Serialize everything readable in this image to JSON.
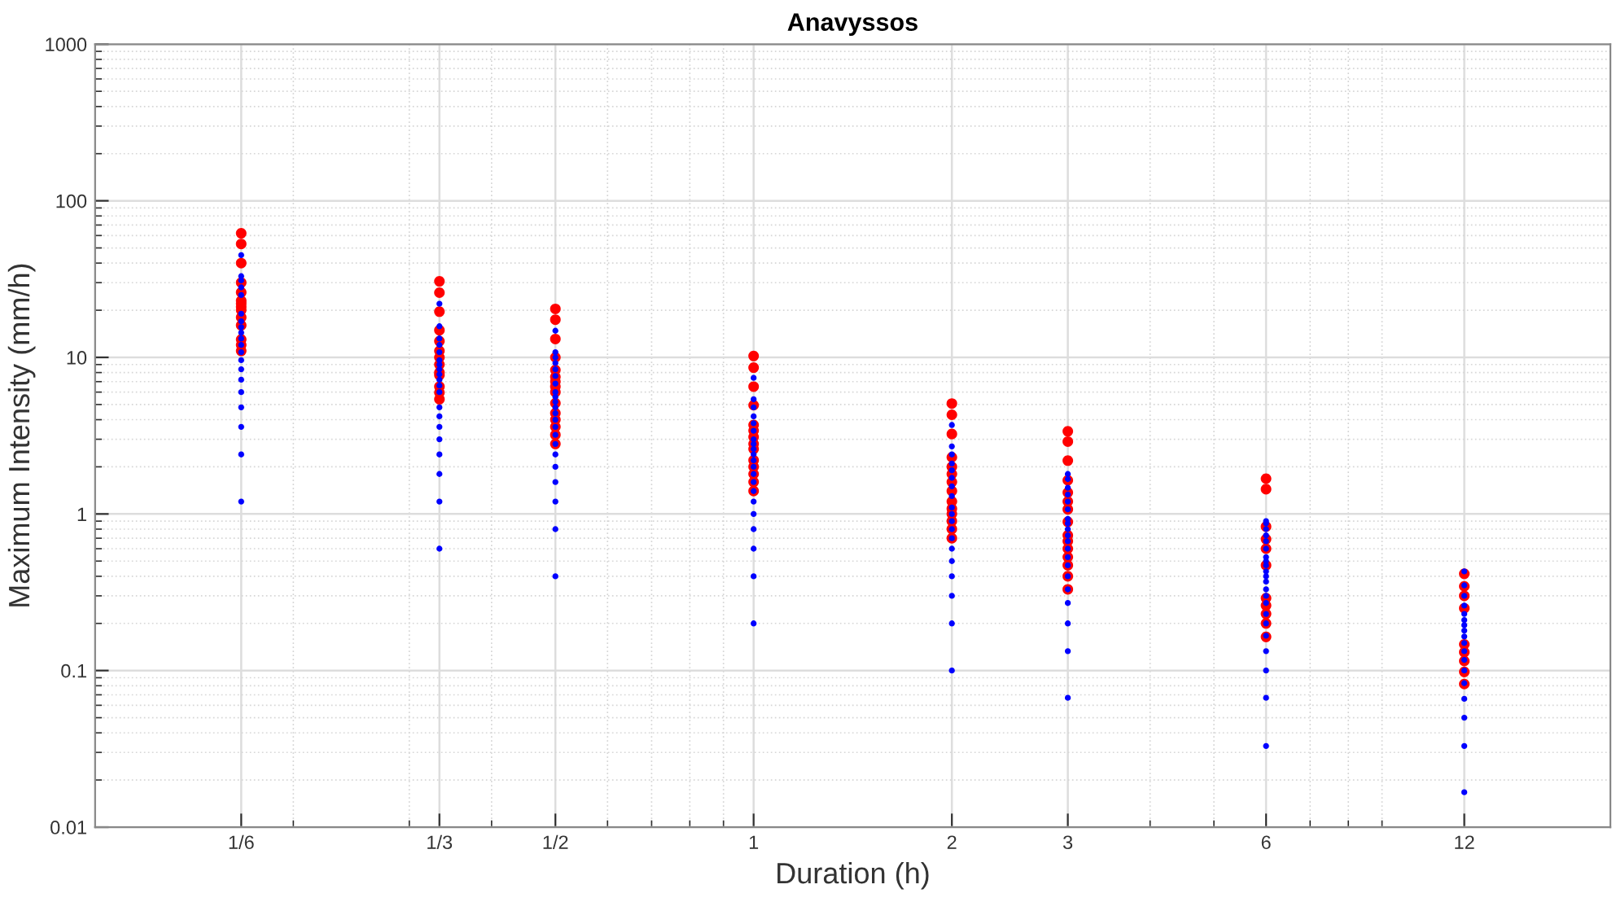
{
  "chart_data": {
    "type": "scatter",
    "title": "Anavyssos",
    "xlabel": "Duration (h)",
    "ylabel": "Maximum Intensity (mm/h)",
    "log": "xy",
    "grid": true,
    "marker": "circle",
    "xlim": [
      0.1,
      20
    ],
    "xticks": [
      {
        "value": 0.16667,
        "label": "1/6"
      },
      {
        "value": 0.33333,
        "label": "1/3"
      },
      {
        "value": 0.5,
        "label": "1/2"
      },
      1,
      2,
      3,
      6,
      12
    ],
    "ylim": [
      0.01,
      1000
    ],
    "yticks": [
      0.01,
      0.1,
      1,
      10,
      100,
      1000
    ],
    "series": [
      {
        "color": "#ff0000",
        "x": [
          0.16667,
          0.16667,
          0.16667,
          0.16667,
          0.16667,
          0.16667,
          0.16667,
          0.16667,
          0.16667,
          0.16667,
          0.16667,
          0.16667,
          0.16667,
          0.16667,
          0.33333,
          0.33333,
          0.33333,
          0.33333,
          0.33333,
          0.33333,
          0.33333,
          0.33333,
          0.33333,
          0.33333,
          0.33333,
          0.33333,
          0.33333,
          0.5,
          0.5,
          0.5,
          0.5,
          0.5,
          0.5,
          0.5,
          0.5,
          0.5,
          0.5,
          0.5,
          0.5,
          0.5,
          0.5,
          0.5,
          1,
          1,
          1,
          1,
          1,
          1,
          1,
          1,
          1,
          1,
          1,
          1,
          1,
          1,
          2,
          2,
          2,
          2,
          2,
          2,
          2,
          2,
          2,
          2,
          2,
          2,
          2,
          2,
          3,
          3,
          3,
          3,
          3,
          3,
          3,
          3,
          3,
          3,
          3,
          3,
          3,
          3,
          3,
          6,
          6,
          6,
          6,
          6,
          6,
          6,
          6,
          6,
          6,
          6,
          12,
          12,
          12,
          12,
          12,
          12,
          12,
          12,
          12
        ],
        "values": [
          62,
          53,
          40,
          30,
          26,
          23,
          22,
          21,
          20,
          18,
          16,
          13,
          12,
          11,
          30.6,
          25.9,
          19.6,
          14.9,
          12.7,
          11,
          10,
          9,
          8,
          7.7,
          6.5,
          5.95,
          5.4,
          20.4,
          17.4,
          13.1,
          10,
          8.3,
          7.5,
          7,
          6.5,
          6,
          5.1,
          4.4,
          4,
          3.6,
          3.2,
          2.8,
          10.2,
          8.6,
          6.5,
          4.95,
          3.7,
          3.4,
          3.1,
          2.8,
          2.6,
          2.2,
          2,
          1.8,
          1.6,
          1.4,
          5.07,
          4.3,
          3.24,
          2.3,
          2,
          1.8,
          1.6,
          1.4,
          1.2,
          1.08,
          1,
          0.9,
          0.8,
          0.7,
          3.37,
          2.9,
          2.19,
          1.64,
          1.37,
          1.2,
          1.07,
          0.89,
          0.73,
          0.67,
          0.6,
          0.53,
          0.47,
          0.4,
          0.33,
          1.68,
          1.44,
          0.83,
          0.69,
          0.6,
          0.47,
          0.29,
          0.26,
          0.23,
          0.2,
          0.164,
          0.415,
          0.345,
          0.3,
          0.25,
          0.147,
          0.131,
          0.115,
          0.098,
          0.082
        ]
      },
      {
        "color": "#0000ff",
        "x": [
          0.16667,
          0.16667,
          0.16667,
          0.16667,
          0.16667,
          0.16667,
          0.16667,
          0.16667,
          0.16667,
          0.16667,
          0.16667,
          0.16667,
          0.16667,
          0.16667,
          0.16667,
          0.16667,
          0.16667,
          0.16667,
          0.16667,
          0.16667,
          0.33333,
          0.33333,
          0.33333,
          0.33333,
          0.33333,
          0.33333,
          0.33333,
          0.33333,
          0.33333,
          0.33333,
          0.33333,
          0.33333,
          0.33333,
          0.33333,
          0.33333,
          0.33333,
          0.33333,
          0.33333,
          0.33333,
          0.33333,
          0.5,
          0.5,
          0.5,
          0.5,
          0.5,
          0.5,
          0.5,
          0.5,
          0.5,
          0.5,
          0.5,
          0.5,
          0.5,
          0.5,
          0.5,
          0.5,
          0.5,
          0.5,
          0.5,
          0.5,
          0.5,
          0.5,
          1,
          1,
          1,
          1,
          1,
          1,
          1,
          1,
          1,
          1,
          1,
          1,
          1,
          1,
          1,
          1,
          1,
          1,
          1,
          1,
          1,
          2,
          2,
          2,
          2,
          2,
          2,
          2,
          2,
          2,
          2,
          2,
          2,
          2,
          2,
          2,
          2,
          2,
          2,
          2,
          3,
          3,
          3,
          3,
          3,
          3,
          3,
          3,
          3,
          3,
          3,
          3,
          3,
          3,
          3,
          3,
          3,
          3,
          3,
          3,
          6,
          6,
          6,
          6,
          6,
          6,
          6,
          6,
          6,
          6,
          6,
          6,
          6,
          6,
          6,
          6,
          6,
          6,
          6,
          6,
          6,
          6,
          12,
          12,
          12,
          12,
          12,
          12,
          12,
          12,
          12,
          12,
          12,
          12,
          12,
          12,
          12,
          12,
          12,
          12
        ],
        "values": [
          45,
          33,
          31,
          28,
          25,
          19,
          17,
          15.6,
          14.4,
          13.2,
          12,
          10.8,
          9.6,
          8.4,
          7.2,
          6,
          4.8,
          3.6,
          2.4,
          1.2,
          22,
          15.8,
          13.2,
          12,
          10.8,
          9.6,
          9,
          8.4,
          7.8,
          7.2,
          6.6,
          6,
          4.8,
          4.2,
          3.6,
          3,
          2.4,
          1.8,
          1.2,
          0.6,
          14.8,
          10.8,
          10,
          9.2,
          8.4,
          7.6,
          6.8,
          6,
          5.6,
          5.2,
          4.8,
          4.4,
          4,
          3.6,
          3.2,
          2.8,
          2.4,
          2,
          1.6,
          1.2,
          0.8,
          0.4,
          7.4,
          5.4,
          4.8,
          4.2,
          3.8,
          3.4,
          3,
          2.8,
          2.6,
          2.4,
          2.2,
          2,
          1.8,
          1.6,
          1.4,
          1.2,
          1,
          0.8,
          0.6,
          0.4,
          0.2,
          3.7,
          2.7,
          2.4,
          2.1,
          1.9,
          1.7,
          1.5,
          1.3,
          1.1,
          1,
          0.9,
          0.8,
          0.7,
          0.6,
          0.5,
          0.4,
          0.3,
          0.2,
          0.1,
          1.8,
          1.67,
          1.47,
          1.33,
          1.2,
          1.07,
          0.93,
          0.87,
          0.8,
          0.73,
          0.67,
          0.6,
          0.53,
          0.47,
          0.4,
          0.33,
          0.27,
          0.2,
          0.133,
          0.067,
          0.9,
          0.87,
          0.8,
          0.73,
          0.67,
          0.6,
          0.53,
          0.5,
          0.47,
          0.43,
          0.4,
          0.37,
          0.33,
          0.3,
          0.27,
          0.23,
          0.2,
          0.167,
          0.133,
          0.1,
          0.067,
          0.033,
          0.43,
          0.35,
          0.3,
          0.26,
          0.23,
          0.21,
          0.195,
          0.18,
          0.165,
          0.15,
          0.133,
          0.117,
          0.1,
          0.083,
          0.066,
          0.05,
          0.033,
          0.0167
        ]
      }
    ]
  }
}
